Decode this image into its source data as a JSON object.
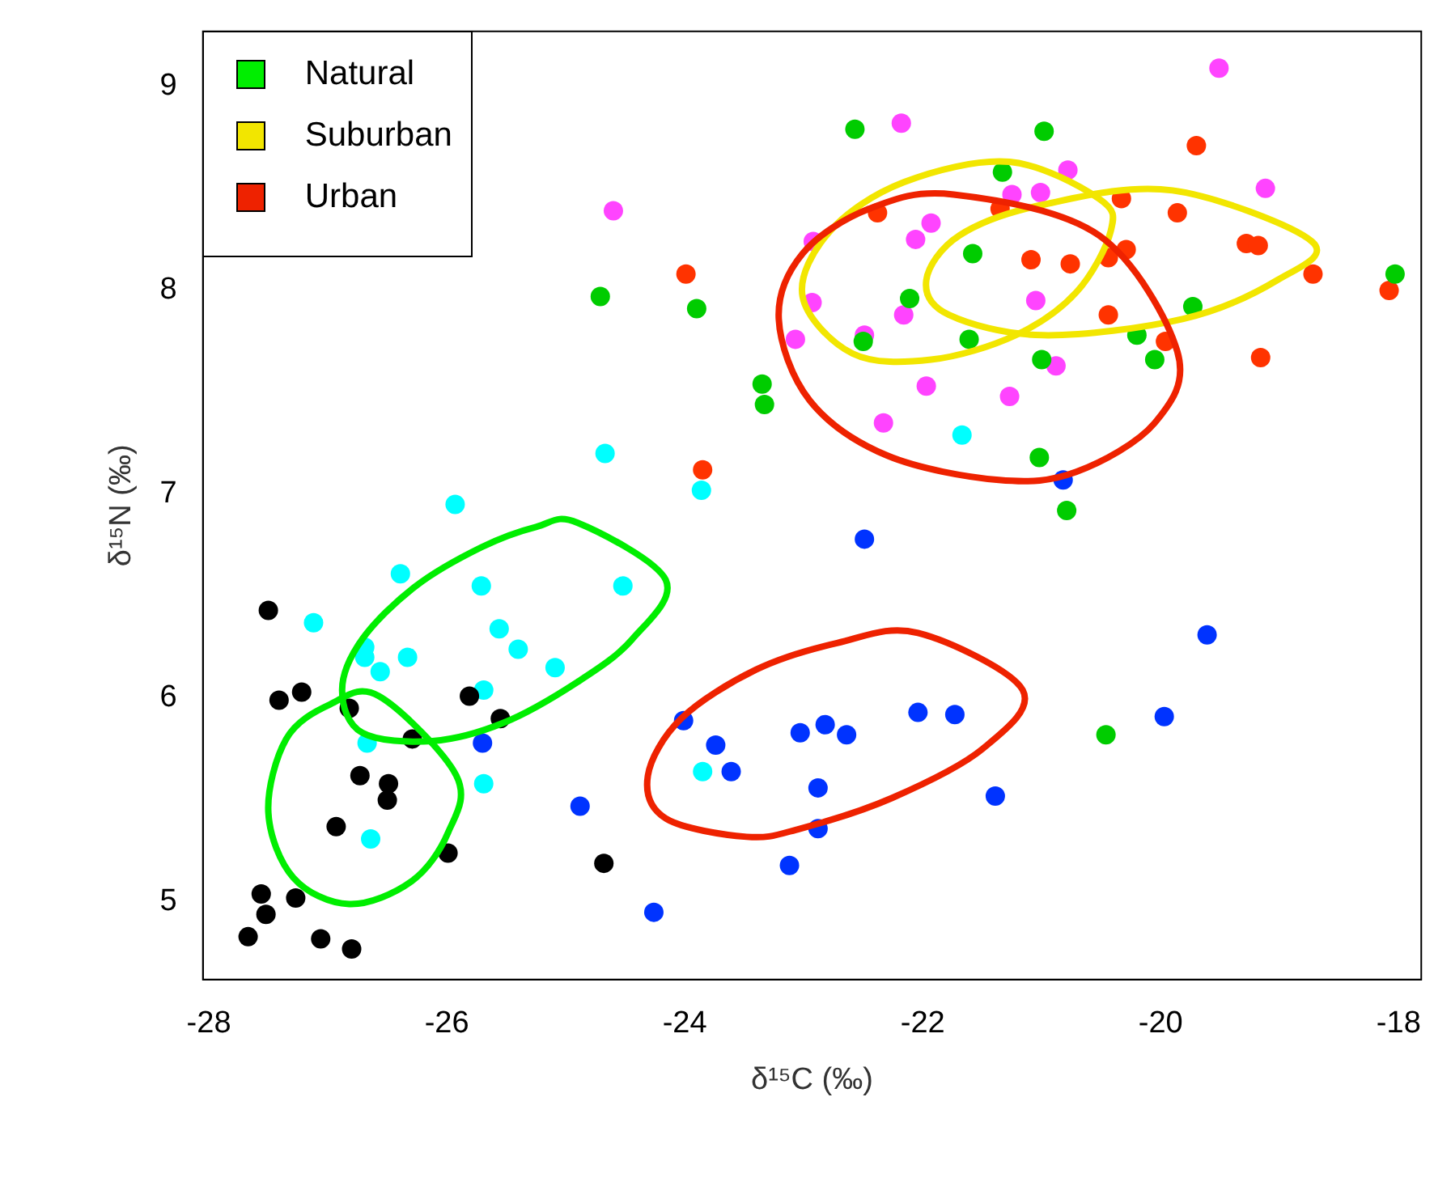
{
  "chart_data": {
    "type": "scatter",
    "xlabel": "δ¹⁵C (‰)",
    "ylabel": "δ¹⁵N (‰)",
    "xlim": [
      -28.05,
      -17.81
    ],
    "ylim": [
      4.62,
      9.27
    ],
    "xticks": [
      -28,
      -26,
      -24,
      -22,
      -20,
      -18
    ],
    "yticks": [
      5,
      6,
      7,
      8,
      9
    ],
    "grid": false,
    "legend": "top left",
    "marker": "circle",
    "series": [
      {
        "color": "#000000",
        "x": [
          -27.5,
          -27.41,
          -27.22,
          -26.82,
          -25.81,
          -25.55,
          -26.29,
          -26.73,
          -26.49,
          -26.5,
          -26.93,
          -25.99,
          -24.68,
          -27.56,
          -27.27,
          -27.52,
          -27.67,
          -27.06,
          -26.8
        ],
        "values": [
          6.43,
          5.99,
          6.03,
          5.95,
          6.01,
          5.9,
          5.8,
          5.62,
          5.58,
          5.5,
          5.37,
          5.24,
          5.19,
          5.04,
          5.02,
          4.94,
          4.83,
          4.82,
          4.77
        ]
      },
      {
        "color": "#00ffff",
        "x": [
          -24.67,
          -23.86,
          -25.93,
          -26.39,
          -25.71,
          -24.52,
          -27.12,
          -25.56,
          -25.4,
          -26.69,
          -26.69,
          -26.33,
          -26.56,
          -25.09,
          -25.69,
          -26.67,
          -25.69,
          -26.64,
          -23.85,
          -21.67
        ],
        "values": [
          7.2,
          7.02,
          6.95,
          6.61,
          6.55,
          6.55,
          6.37,
          6.34,
          6.24,
          6.25,
          6.2,
          6.2,
          6.13,
          6.15,
          6.04,
          5.78,
          5.58,
          5.31,
          5.64,
          7.29
        ]
      },
      {
        "color": "#0033ff",
        "x": [
          -22.49,
          -19.61,
          -24.01,
          -23.74,
          -23.03,
          -22.82,
          -22.64,
          -22.04,
          -21.73,
          -19.97,
          -23.61,
          -22.88,
          -24.88,
          -21.39,
          -22.88,
          -23.12,
          -24.26,
          -25.7,
          -20.82
        ],
        "values": [
          6.78,
          6.31,
          5.89,
          5.77,
          5.83,
          5.87,
          5.82,
          5.93,
          5.92,
          5.91,
          5.64,
          5.56,
          5.47,
          5.52,
          5.36,
          5.18,
          4.95,
          5.78,
          7.07
        ]
      },
      {
        "color": "#00cc00",
        "x": [
          -22.57,
          -20.98,
          -21.33,
          -21.58,
          -24.71,
          -23.9,
          -22.11,
          -18.03,
          -19.73,
          -21.61,
          -22.5,
          -20.2,
          -21.0,
          -20.05,
          -23.35,
          -23.33,
          -21.02,
          -20.79,
          -20.46
        ],
        "values": [
          8.79,
          8.78,
          8.58,
          8.18,
          7.97,
          7.91,
          7.96,
          8.08,
          7.92,
          7.76,
          7.75,
          7.78,
          7.66,
          7.66,
          7.54,
          7.44,
          7.18,
          6.92,
          5.82
        ]
      },
      {
        "color": "#ff44ff",
        "x": [
          -19.51,
          -22.18,
          -24.6,
          -20.78,
          -21.25,
          -21.01,
          -19.12,
          -21.93,
          -22.06,
          -22.92,
          -22.93,
          -21.05,
          -22.16,
          -23.07,
          -22.49,
          -20.88,
          -21.97,
          -21.27,
          -22.33
        ],
        "values": [
          9.09,
          8.82,
          8.39,
          8.59,
          8.47,
          8.48,
          8.5,
          8.33,
          8.25,
          8.24,
          7.94,
          7.95,
          7.88,
          7.76,
          7.78,
          7.63,
          7.53,
          7.48,
          7.35
        ]
      },
      {
        "color": "#ff3300",
        "x": [
          -19.7,
          -22.38,
          -21.35,
          -20.33,
          -19.86,
          -23.99,
          -21.09,
          -20.76,
          -20.29,
          -20.44,
          -19.28,
          -19.18,
          -18.72,
          -18.08,
          -20.44,
          -19.96,
          -19.16,
          -23.85
        ],
        "values": [
          8.71,
          8.38,
          8.4,
          8.45,
          8.38,
          8.08,
          8.15,
          8.13,
          8.2,
          8.16,
          8.23,
          8.22,
          8.08,
          8.0,
          7.88,
          7.75,
          7.67,
          7.12
        ]
      },
      {
        "name": "Natural",
        "color": "#00ee00"
      },
      {
        "name": "Suburban",
        "color": "#f2e600"
      },
      {
        "name": "Urban",
        "color": "#ee2200"
      }
    ]
  }
}
